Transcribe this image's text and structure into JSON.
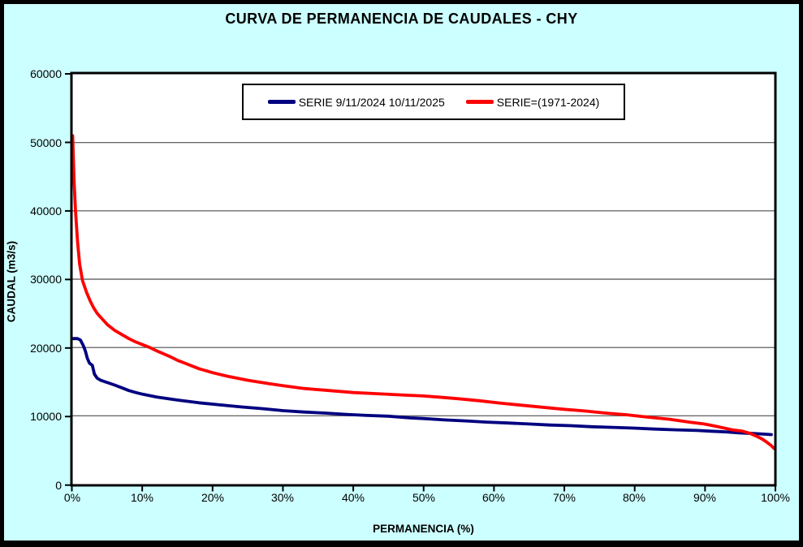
{
  "chart_data": {
    "type": "line",
    "title": "CURVA DE PERMANENCIA DE CAUDALES - CHY",
    "xlabel": "PERMANENCIA (%)",
    "ylabel": "CAUDAL (m3/s)",
    "xlim": [
      0,
      100
    ],
    "ylim": [
      0,
      60000
    ],
    "grid": "horizontal-major",
    "gridline_values": [
      10000,
      20000,
      30000,
      40000,
      50000
    ],
    "legend_position": "top-center-boxed",
    "x_tick_labels": [
      "0%",
      "10%",
      "20%",
      "30%",
      "40%",
      "50%",
      "60%",
      "70%",
      "80%",
      "90%",
      "100%"
    ],
    "y_tick_labels": [
      "60000",
      "50000",
      "40000",
      "30000",
      "20000",
      "10000",
      "0"
    ],
    "colors": {
      "background": "#CCFFFF",
      "plot_background": "#FFFFFF",
      "gridline": "#4d4d4d",
      "axis": "#000000",
      "series_blue": "#000080",
      "series_red": "#FF0000"
    },
    "series": [
      {
        "name": "SERIE 9/11/2024 10/11/2025",
        "color": "#000080",
        "points": [
          [
            0,
            21300
          ],
          [
            0.7,
            21300
          ],
          [
            1.1,
            21100
          ],
          [
            1.5,
            20300
          ],
          [
            1.8,
            19500
          ],
          [
            2.1,
            18400
          ],
          [
            2.4,
            17700
          ],
          [
            2.8,
            17400
          ],
          [
            3.1,
            16100
          ],
          [
            3.5,
            15500
          ],
          [
            4,
            15200
          ],
          [
            5,
            14850
          ],
          [
            6,
            14500
          ],
          [
            7,
            14100
          ],
          [
            8,
            13700
          ],
          [
            9,
            13400
          ],
          [
            10,
            13150
          ],
          [
            12,
            12750
          ],
          [
            15,
            12300
          ],
          [
            18,
            11900
          ],
          [
            21,
            11600
          ],
          [
            24,
            11300
          ],
          [
            27,
            11050
          ],
          [
            30,
            10750
          ],
          [
            33,
            10550
          ],
          [
            36,
            10400
          ],
          [
            39,
            10200
          ],
          [
            42,
            10050
          ],
          [
            45,
            9950
          ],
          [
            48,
            9700
          ],
          [
            50,
            9600
          ],
          [
            53,
            9400
          ],
          [
            56,
            9250
          ],
          [
            59,
            9080
          ],
          [
            62,
            8950
          ],
          [
            65,
            8800
          ],
          [
            68,
            8650
          ],
          [
            71,
            8550
          ],
          [
            74,
            8400
          ],
          [
            77,
            8300
          ],
          [
            80,
            8200
          ],
          [
            83,
            8050
          ],
          [
            86,
            7950
          ],
          [
            89,
            7850
          ],
          [
            91,
            7750
          ],
          [
            93,
            7650
          ],
          [
            95,
            7500
          ],
          [
            97,
            7400
          ],
          [
            98.5,
            7320
          ],
          [
            99.6,
            7250
          ]
        ]
      },
      {
        "name": "SERIE=(1971-2024)",
        "color": "#FF0000",
        "points": [
          [
            0,
            51000
          ],
          [
            0.2,
            44500
          ],
          [
            0.4,
            40000
          ],
          [
            0.7,
            35500
          ],
          [
            1,
            32200
          ],
          [
            1.4,
            29800
          ],
          [
            2,
            28000
          ],
          [
            2.5,
            26800
          ],
          [
            3,
            25800
          ],
          [
            3.5,
            25000
          ],
          [
            4,
            24400
          ],
          [
            5,
            23300
          ],
          [
            6,
            22500
          ],
          [
            7,
            21900
          ],
          [
            8,
            21300
          ],
          [
            9,
            20800
          ],
          [
            10,
            20400
          ],
          [
            11,
            20000
          ],
          [
            12,
            19500
          ],
          [
            14,
            18600
          ],
          [
            15,
            18100
          ],
          [
            16,
            17700
          ],
          [
            18,
            16900
          ],
          [
            20,
            16300
          ],
          [
            22,
            15800
          ],
          [
            25,
            15200
          ],
          [
            28,
            14700
          ],
          [
            30,
            14400
          ],
          [
            33,
            14000
          ],
          [
            36,
            13750
          ],
          [
            40,
            13400
          ],
          [
            44,
            13200
          ],
          [
            48,
            13000
          ],
          [
            50,
            12900
          ],
          [
            52,
            12750
          ],
          [
            55,
            12500
          ],
          [
            58,
            12200
          ],
          [
            61,
            11850
          ],
          [
            64,
            11550
          ],
          [
            67,
            11250
          ],
          [
            70,
            10950
          ],
          [
            73,
            10700
          ],
          [
            76,
            10400
          ],
          [
            79,
            10150
          ],
          [
            82,
            9800
          ],
          [
            85,
            9500
          ],
          [
            88,
            9050
          ],
          [
            90,
            8800
          ],
          [
            92,
            8400
          ],
          [
            94,
            7950
          ],
          [
            95.5,
            7750
          ],
          [
            96.5,
            7450
          ],
          [
            97.5,
            7000
          ],
          [
            98.3,
            6600
          ],
          [
            99,
            6100
          ],
          [
            99.5,
            5700
          ],
          [
            100,
            5200
          ]
        ]
      }
    ]
  }
}
